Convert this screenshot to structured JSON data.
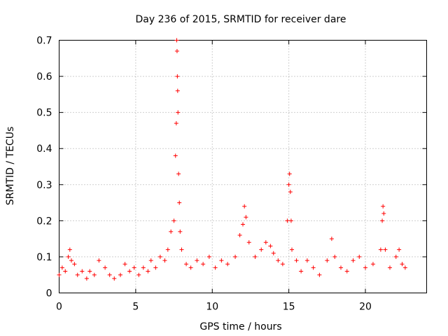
{
  "chart_data": {
    "type": "scatter",
    "title": "Day 236 of 2015, SRMTID for receiver dare",
    "xlabel": "GPS time / hours",
    "ylabel": "SRMTID / TECUs",
    "xlim": [
      0,
      24
    ],
    "ylim": [
      0,
      0.7
    ],
    "x_ticks": [
      0,
      5,
      10,
      15,
      20
    ],
    "x_tick_labels": [
      "0",
      "5",
      "10",
      "15",
      "20"
    ],
    "y_ticks": [
      0,
      0.1,
      0.2,
      0.3,
      0.4,
      0.5,
      0.6,
      0.7
    ],
    "y_tick_labels": [
      "0",
      "0.1",
      "0.2",
      "0.3",
      "0.4",
      "0.5",
      "0.6",
      "0.7"
    ],
    "grid": true,
    "marker": "plus",
    "series": [
      {
        "name": "SRMTID",
        "color": "#ff0000",
        "points": [
          [
            0.0,
            0.05
          ],
          [
            0.2,
            0.07
          ],
          [
            0.4,
            0.06
          ],
          [
            0.6,
            0.1
          ],
          [
            0.7,
            0.12
          ],
          [
            0.8,
            0.09
          ],
          [
            1.0,
            0.08
          ],
          [
            1.2,
            0.05
          ],
          [
            1.5,
            0.06
          ],
          [
            1.8,
            0.04
          ],
          [
            2.0,
            0.06
          ],
          [
            2.3,
            0.05
          ],
          [
            2.6,
            0.09
          ],
          [
            3.0,
            0.07
          ],
          [
            3.3,
            0.05
          ],
          [
            3.6,
            0.04
          ],
          [
            4.0,
            0.05
          ],
          [
            4.3,
            0.08
          ],
          [
            4.6,
            0.06
          ],
          [
            4.9,
            0.07
          ],
          [
            5.2,
            0.05
          ],
          [
            5.5,
            0.07
          ],
          [
            5.8,
            0.06
          ],
          [
            6.0,
            0.09
          ],
          [
            6.3,
            0.07
          ],
          [
            6.6,
            0.1
          ],
          [
            6.9,
            0.09
          ],
          [
            7.1,
            0.12
          ],
          [
            7.3,
            0.17
          ],
          [
            7.5,
            0.2
          ],
          [
            7.6,
            0.38
          ],
          [
            7.65,
            0.47
          ],
          [
            7.68,
            0.7
          ],
          [
            7.7,
            0.67
          ],
          [
            7.72,
            0.6
          ],
          [
            7.74,
            0.56
          ],
          [
            7.76,
            0.5
          ],
          [
            7.8,
            0.33
          ],
          [
            7.85,
            0.25
          ],
          [
            7.9,
            0.17
          ],
          [
            8.0,
            0.12
          ],
          [
            8.3,
            0.08
          ],
          [
            8.6,
            0.07
          ],
          [
            9.0,
            0.09
          ],
          [
            9.4,
            0.08
          ],
          [
            9.8,
            0.1
          ],
          [
            10.2,
            0.07
          ],
          [
            10.6,
            0.09
          ],
          [
            11.0,
            0.08
          ],
          [
            11.5,
            0.1
          ],
          [
            11.8,
            0.16
          ],
          [
            12.0,
            0.19
          ],
          [
            12.1,
            0.24
          ],
          [
            12.2,
            0.21
          ],
          [
            12.4,
            0.14
          ],
          [
            12.8,
            0.1
          ],
          [
            13.2,
            0.12
          ],
          [
            13.5,
            0.14
          ],
          [
            13.8,
            0.13
          ],
          [
            14.0,
            0.11
          ],
          [
            14.3,
            0.09
          ],
          [
            14.6,
            0.08
          ],
          [
            14.9,
            0.2
          ],
          [
            15.0,
            0.3
          ],
          [
            15.05,
            0.33
          ],
          [
            15.1,
            0.28
          ],
          [
            15.15,
            0.2
          ],
          [
            15.2,
            0.12
          ],
          [
            15.5,
            0.09
          ],
          [
            15.8,
            0.06
          ],
          [
            16.2,
            0.09
          ],
          [
            16.6,
            0.07
          ],
          [
            17.0,
            0.05
          ],
          [
            17.5,
            0.09
          ],
          [
            17.8,
            0.15
          ],
          [
            18.0,
            0.1
          ],
          [
            18.4,
            0.07
          ],
          [
            18.8,
            0.06
          ],
          [
            19.2,
            0.09
          ],
          [
            19.6,
            0.1
          ],
          [
            20.0,
            0.07
          ],
          [
            20.5,
            0.08
          ],
          [
            21.0,
            0.12
          ],
          [
            21.1,
            0.2
          ],
          [
            21.15,
            0.24
          ],
          [
            21.2,
            0.22
          ],
          [
            21.3,
            0.12
          ],
          [
            21.6,
            0.07
          ],
          [
            22.0,
            0.1
          ],
          [
            22.2,
            0.12
          ],
          [
            22.4,
            0.08
          ],
          [
            22.6,
            0.07
          ]
        ]
      }
    ]
  }
}
